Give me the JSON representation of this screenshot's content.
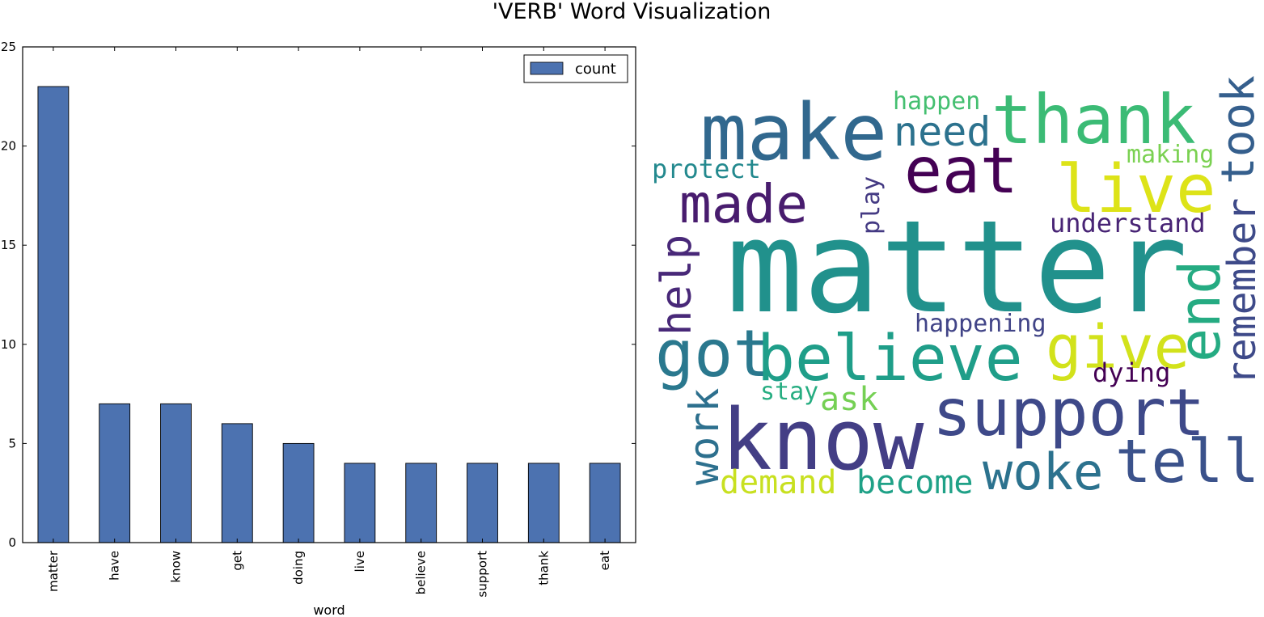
{
  "figure": {
    "title": "'VERB' Word Visualization"
  },
  "chart_data": [
    {
      "type": "bar",
      "categories": [
        "matter",
        "have",
        "know",
        "get",
        "doing",
        "live",
        "believe",
        "support",
        "thank",
        "eat"
      ],
      "series": [
        {
          "name": "count",
          "values": [
            23,
            7,
            7,
            6,
            5,
            4,
            4,
            4,
            4,
            4
          ],
          "color": "#4c72b0"
        }
      ],
      "xlabel": "word",
      "ylabel": "",
      "ylim": [
        0,
        25
      ],
      "yticks": [
        0,
        5,
        10,
        15,
        20,
        25
      ],
      "grid": false,
      "legend": "top-right"
    }
  ],
  "wordcloud": {
    "words": [
      {
        "text": "matter",
        "color": "#21918c"
      },
      {
        "text": "make",
        "color": "#31688e"
      },
      {
        "text": "thank",
        "color": "#3bbb75"
      },
      {
        "text": "need",
        "color": "#2c728e"
      },
      {
        "text": "happen",
        "color": "#44bf70"
      },
      {
        "text": "eat",
        "color": "#440154"
      },
      {
        "text": "live",
        "color": "#dde318"
      },
      {
        "text": "making",
        "color": "#7ad151"
      },
      {
        "text": "took",
        "color": "#355f8d"
      },
      {
        "text": "protect",
        "color": "#23898e"
      },
      {
        "text": "made",
        "color": "#481c6e"
      },
      {
        "text": "play",
        "color": "#443a83"
      },
      {
        "text": "understand",
        "color": "#482475"
      },
      {
        "text": "help",
        "color": "#482878"
      },
      {
        "text": "remember",
        "color": "#3e4a89"
      },
      {
        "text": "end",
        "color": "#25ab82"
      },
      {
        "text": "got",
        "color": "#2a788e"
      },
      {
        "text": "believe",
        "color": "#1f9e89"
      },
      {
        "text": "give",
        "color": "#d2e21b"
      },
      {
        "text": "happening",
        "color": "#414487"
      },
      {
        "text": "dying",
        "color": "#440154"
      },
      {
        "text": "stay",
        "color": "#26ad81"
      },
      {
        "text": "ask",
        "color": "#75d054"
      },
      {
        "text": "support",
        "color": "#3e4989"
      },
      {
        "text": "work",
        "color": "#2d708e"
      },
      {
        "text": "know",
        "color": "#433e85"
      },
      {
        "text": "tell",
        "color": "#3b528b"
      },
      {
        "text": "woke",
        "color": "#2c728e"
      },
      {
        "text": "demand",
        "color": "#c8e020"
      },
      {
        "text": "become",
        "color": "#1fa187"
      }
    ]
  }
}
